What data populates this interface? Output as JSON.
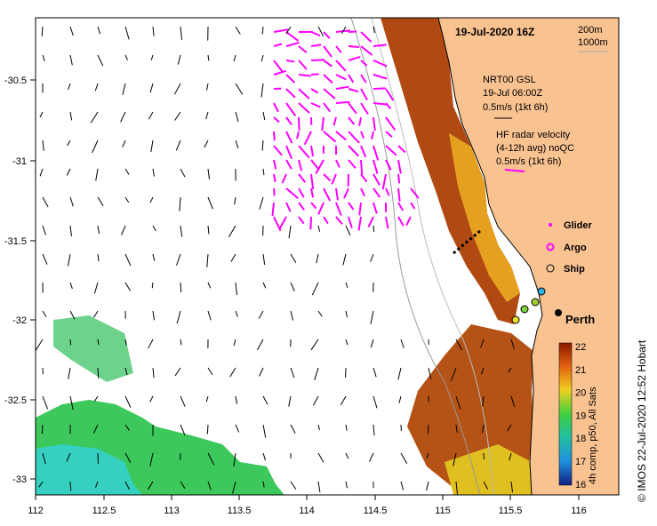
{
  "title": "19-Jul-2020 16Z",
  "depth_contours": [
    "200m",
    "1000m"
  ],
  "credit": "© IMOS 22-Jul-2020 12:52 Hobart",
  "place_label": "Perth",
  "legend": {
    "gsl_title": "NRT00 GSL",
    "gsl_time": "19-Jul 06:00Z",
    "gsl_scale": "0.5m/s (1kt 6h)",
    "radar_title": "HF radar velocity",
    "radar_sub": "(4-12h avg) noQC",
    "radar_scale": "0.5m/s (1kt 6h)",
    "glider": "Glider",
    "argo": "Argo",
    "ship": "Ship"
  },
  "colorbar": {
    "label": "4h comp, p50, All Sats",
    "ticks": [
      "22",
      "21",
      "20",
      "19",
      "18",
      "17",
      "16"
    ]
  },
  "axes": {
    "x_ticks": [
      "112",
      "112.5",
      "113",
      "113.5",
      "114",
      "114.5",
      "115",
      "115.5",
      "116"
    ],
    "y_ticks": [
      "-30.5",
      "-31",
      "-31.5",
      "-32",
      "-32.5",
      "-33"
    ]
  },
  "colors": {
    "land": "#f9c291",
    "radar": "#ff00ff",
    "sst_warm": "#a33d0a",
    "sst_cool": "#2fc06a"
  }
}
